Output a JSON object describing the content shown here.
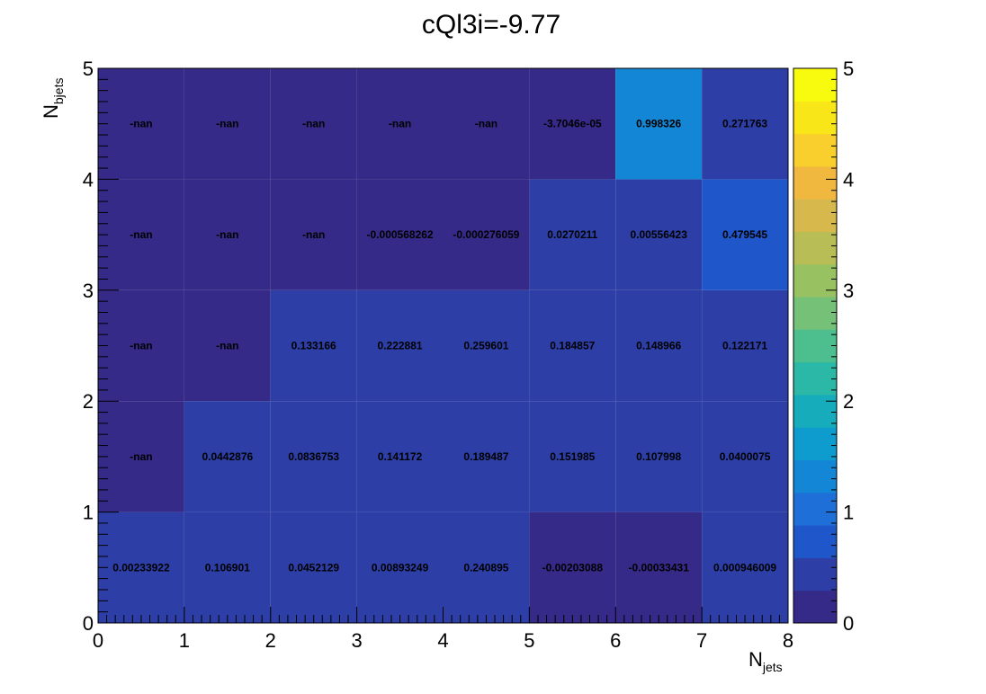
{
  "chart_data": {
    "type": "heatmap",
    "title": "cQl3i=-9.77",
    "xlabel_main": "N",
    "xlabel_sub": "jets",
    "ylabel_main": "N",
    "ylabel_sub": "bjets",
    "xlim": [
      0,
      8
    ],
    "ylim": [
      0,
      5
    ],
    "zlim": [
      0,
      5
    ],
    "x_ticks": [
      "0",
      "1",
      "2",
      "3",
      "4",
      "5",
      "6",
      "7",
      "8"
    ],
    "y_ticks": [
      "0",
      "1",
      "2",
      "3",
      "4",
      "5"
    ],
    "z_ticks": [
      "0",
      "1",
      "2",
      "3",
      "4",
      "5"
    ],
    "colormap": [
      "#352a87",
      "#2d3fa6",
      "#1f56c9",
      "#1f6fd8",
      "#1387d6",
      "#0d9ccd",
      "#16acbb",
      "#2bb8a6",
      "#4dbf8e",
      "#74c177",
      "#98c162",
      "#b9bd55",
      "#d6b84c",
      "#f1b840",
      "#f9cf2d",
      "#f9e618",
      "#f9fb0e"
    ],
    "cells": [
      {
        "x": 0,
        "y": 0,
        "value": 0.00233922,
        "label": "0.00233922"
      },
      {
        "x": 1,
        "y": 0,
        "value": 0.106901,
        "label": "0.106901"
      },
      {
        "x": 2,
        "y": 0,
        "value": 0.0452129,
        "label": "0.0452129"
      },
      {
        "x": 3,
        "y": 0,
        "value": 0.00893249,
        "label": "0.00893249"
      },
      {
        "x": 4,
        "y": 0,
        "value": 0.240895,
        "label": "0.240895"
      },
      {
        "x": 5,
        "y": 0,
        "value": -0.00203088,
        "label": "-0.00203088"
      },
      {
        "x": 6,
        "y": 0,
        "value": -0.00033431,
        "label": "-0.00033431"
      },
      {
        "x": 7,
        "y": 0,
        "value": 0.000946009,
        "label": "0.000946009"
      },
      {
        "x": 0,
        "y": 1,
        "value": null,
        "label": "-nan"
      },
      {
        "x": 1,
        "y": 1,
        "value": 0.0442876,
        "label": "0.0442876"
      },
      {
        "x": 2,
        "y": 1,
        "value": 0.0836753,
        "label": "0.0836753"
      },
      {
        "x": 3,
        "y": 1,
        "value": 0.141172,
        "label": "0.141172"
      },
      {
        "x": 4,
        "y": 1,
        "value": 0.189487,
        "label": "0.189487"
      },
      {
        "x": 5,
        "y": 1,
        "value": 0.151985,
        "label": "0.151985"
      },
      {
        "x": 6,
        "y": 1,
        "value": 0.107998,
        "label": "0.107998"
      },
      {
        "x": 7,
        "y": 1,
        "value": 0.0400075,
        "label": "0.0400075"
      },
      {
        "x": 0,
        "y": 2,
        "value": null,
        "label": "-nan"
      },
      {
        "x": 1,
        "y": 2,
        "value": null,
        "label": "-nan"
      },
      {
        "x": 2,
        "y": 2,
        "value": 0.133166,
        "label": "0.133166"
      },
      {
        "x": 3,
        "y": 2,
        "value": 0.222881,
        "label": "0.222881"
      },
      {
        "x": 4,
        "y": 2,
        "value": 0.259601,
        "label": "0.259601"
      },
      {
        "x": 5,
        "y": 2,
        "value": 0.184857,
        "label": "0.184857"
      },
      {
        "x": 6,
        "y": 2,
        "value": 0.148966,
        "label": "0.148966"
      },
      {
        "x": 7,
        "y": 2,
        "value": 0.122171,
        "label": "0.122171"
      },
      {
        "x": 0,
        "y": 3,
        "value": null,
        "label": "-nan"
      },
      {
        "x": 1,
        "y": 3,
        "value": null,
        "label": "-nan"
      },
      {
        "x": 2,
        "y": 3,
        "value": null,
        "label": "-nan"
      },
      {
        "x": 3,
        "y": 3,
        "value": -0.000568262,
        "label": "-0.000568262"
      },
      {
        "x": 4,
        "y": 3,
        "value": -0.000276059,
        "label": "-0.000276059"
      },
      {
        "x": 5,
        "y": 3,
        "value": 0.0270211,
        "label": "0.0270211"
      },
      {
        "x": 6,
        "y": 3,
        "value": 0.00556423,
        "label": "0.00556423"
      },
      {
        "x": 7,
        "y": 3,
        "value": 0.479545,
        "label": "0.479545"
      },
      {
        "x": 0,
        "y": 4,
        "value": null,
        "label": "-nan"
      },
      {
        "x": 1,
        "y": 4,
        "value": null,
        "label": "-nan"
      },
      {
        "x": 2,
        "y": 4,
        "value": null,
        "label": "-nan"
      },
      {
        "x": 3,
        "y": 4,
        "value": null,
        "label": "-nan"
      },
      {
        "x": 4,
        "y": 4,
        "value": null,
        "label": "-nan"
      },
      {
        "x": 5,
        "y": 4,
        "value": -3.7046e-05,
        "label": "-3.7046e-05"
      },
      {
        "x": 6,
        "y": 4,
        "value": 0.998326,
        "label": "0.998326"
      },
      {
        "x": 7,
        "y": 4,
        "value": 0.271763,
        "label": "0.271763"
      }
    ]
  }
}
